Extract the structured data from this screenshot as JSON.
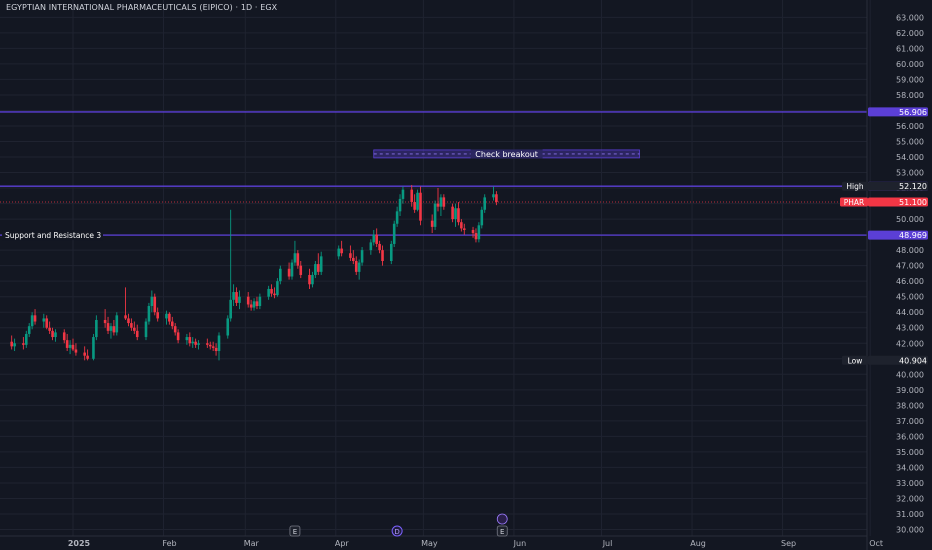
{
  "header": {
    "title": "EGYPTIAN INTERNATIONAL PHARMACEUTICALS (EIPICO) · 1D · EGX"
  },
  "colors": {
    "background": "#131722",
    "grid": "#1f2330",
    "up": "#089981",
    "down": "#f23645",
    "level_line": "#5b3fd6",
    "level_label_bg": "#5b3fd6",
    "price_label_bg": "#f23645",
    "text": "#d1d4dc",
    "axis_text": "#b2b5be"
  },
  "chart_data": {
    "type": "candlestick",
    "symbol": "PHAR",
    "ylim": [
      29.6,
      63.5
    ],
    "y_ticks": [
      "30.000",
      "31.000",
      "32.000",
      "33.000",
      "34.000",
      "35.000",
      "36.000",
      "37.000",
      "38.000",
      "39.000",
      "40.000",
      "41.000",
      "42.000",
      "43.000",
      "44.000",
      "45.000",
      "46.000",
      "47.000",
      "48.000",
      "49.000",
      "50.000",
      "51.000",
      "52.000",
      "53.000",
      "54.000",
      "55.000",
      "56.000",
      "57.000",
      "58.000",
      "59.000",
      "60.000",
      "61.000",
      "62.000",
      "63.000"
    ],
    "x_ticks": [
      {
        "label": "2025",
        "date": "2025-01-01"
      },
      {
        "label": "Feb",
        "date": "2025-02-01"
      },
      {
        "label": "Mar",
        "date": "2025-03-01"
      },
      {
        "label": "Apr",
        "date": "2025-04-01"
      },
      {
        "label": "May",
        "date": "2025-05-01"
      },
      {
        "label": "Jun",
        "date": "2025-06-01"
      },
      {
        "label": "Jul",
        "date": "2025-07-01"
      },
      {
        "label": "Aug",
        "date": "2025-08-01"
      },
      {
        "label": "Sep",
        "date": "2025-09-01"
      },
      {
        "label": "Oct",
        "date": "2025-10-01"
      }
    ],
    "x_range": [
      "2024-12-11",
      "2025-10-31"
    ],
    "levels": [
      {
        "value": 56.906,
        "label": "56.906",
        "text": ""
      },
      {
        "value": 52.12,
        "label": "52.120",
        "text": ""
      },
      {
        "value": 48.969,
        "label": "48.969",
        "text": "Support and Resistance 3"
      }
    ],
    "price_labels": [
      {
        "name": "High",
        "value": 52.12,
        "text": "52.120",
        "style": "dark"
      },
      {
        "name": "PHAR",
        "value": 51.1,
        "text": "51.100",
        "style": "red"
      },
      {
        "name": "Low",
        "value": 40.904,
        "text": "40.904",
        "style": "dark"
      }
    ],
    "annotation": {
      "text": "Check breakout",
      "start": "2025-04-14",
      "end": "2025-07-14",
      "value": 54.2
    },
    "event_markers": [
      {
        "letter": "E",
        "date": "2025-03-18"
      },
      {
        "letter": "D",
        "date": "2025-04-22"
      },
      {
        "letter": "E",
        "date": "2025-05-28"
      }
    ],
    "candles": [
      {
        "d": "2024-12-11",
        "o": 42.1,
        "h": 42.5,
        "l": 41.6,
        "c": 41.8
      },
      {
        "d": "2024-12-12",
        "o": 41.8,
        "h": 42.3,
        "l": 41.5,
        "c": 42.0
      },
      {
        "d": "2024-12-15",
        "o": 42.0,
        "h": 42.4,
        "l": 41.6,
        "c": 41.9
      },
      {
        "d": "2024-12-16",
        "o": 41.9,
        "h": 42.8,
        "l": 41.7,
        "c": 42.6
      },
      {
        "d": "2024-12-17",
        "o": 42.6,
        "h": 43.3,
        "l": 42.4,
        "c": 43.1
      },
      {
        "d": "2024-12-18",
        "o": 43.1,
        "h": 44.0,
        "l": 42.9,
        "c": 43.8
      },
      {
        "d": "2024-12-19",
        "o": 43.8,
        "h": 44.2,
        "l": 43.2,
        "c": 43.4
      },
      {
        "d": "2024-12-22",
        "o": 43.4,
        "h": 43.9,
        "l": 43.0,
        "c": 43.6
      },
      {
        "d": "2024-12-23",
        "o": 43.6,
        "h": 43.8,
        "l": 42.9,
        "c": 43.0
      },
      {
        "d": "2024-12-24",
        "o": 43.0,
        "h": 43.4,
        "l": 42.6,
        "c": 42.8
      },
      {
        "d": "2024-12-25",
        "o": 42.8,
        "h": 43.0,
        "l": 42.2,
        "c": 42.4
      },
      {
        "d": "2024-12-26",
        "o": 42.4,
        "h": 42.9,
        "l": 42.1,
        "c": 42.7
      },
      {
        "d": "2024-12-29",
        "o": 42.7,
        "h": 42.9,
        "l": 42.0,
        "c": 42.2
      },
      {
        "d": "2024-12-30",
        "o": 42.2,
        "h": 42.6,
        "l": 41.5,
        "c": 41.7
      },
      {
        "d": "2024-12-31",
        "o": 41.7,
        "h": 42.2,
        "l": 41.3,
        "c": 41.9
      },
      {
        "d": "2025-01-01",
        "o": 41.9,
        "h": 42.3,
        "l": 41.5,
        "c": 41.6
      },
      {
        "d": "2025-01-02",
        "o": 41.6,
        "h": 42.0,
        "l": 41.2,
        "c": 41.4
      },
      {
        "d": "2025-01-05",
        "o": 41.4,
        "h": 41.8,
        "l": 40.9,
        "c": 41.2
      },
      {
        "d": "2025-01-06",
        "o": 41.2,
        "h": 41.6,
        "l": 40.9,
        "c": 41.0
      },
      {
        "d": "2025-01-08",
        "o": 41.0,
        "h": 42.6,
        "l": 40.9,
        "c": 42.4
      },
      {
        "d": "2025-01-09",
        "o": 42.4,
        "h": 43.8,
        "l": 42.2,
        "c": 43.5
      },
      {
        "d": "2025-01-12",
        "o": 43.5,
        "h": 44.2,
        "l": 43.0,
        "c": 43.3
      },
      {
        "d": "2025-01-13",
        "o": 43.3,
        "h": 43.7,
        "l": 42.6,
        "c": 42.8
      },
      {
        "d": "2025-01-14",
        "o": 42.8,
        "h": 43.3,
        "l": 42.3,
        "c": 43.1
      },
      {
        "d": "2025-01-15",
        "o": 43.1,
        "h": 43.5,
        "l": 42.5,
        "c": 42.7
      },
      {
        "d": "2025-01-16",
        "o": 42.7,
        "h": 44.0,
        "l": 42.5,
        "c": 43.8
      },
      {
        "d": "2025-01-19",
        "o": 43.8,
        "h": 45.6,
        "l": 43.5,
        "c": 43.6
      },
      {
        "d": "2025-01-20",
        "o": 43.6,
        "h": 43.9,
        "l": 43.1,
        "c": 43.3
      },
      {
        "d": "2025-01-21",
        "o": 43.3,
        "h": 43.6,
        "l": 42.8,
        "c": 43.0
      },
      {
        "d": "2025-01-22",
        "o": 43.0,
        "h": 43.4,
        "l": 42.6,
        "c": 42.8
      },
      {
        "d": "2025-01-23",
        "o": 42.8,
        "h": 43.2,
        "l": 42.2,
        "c": 42.4
      },
      {
        "d": "2025-01-26",
        "o": 42.4,
        "h": 43.6,
        "l": 42.2,
        "c": 43.4
      },
      {
        "d": "2025-01-27",
        "o": 43.4,
        "h": 44.6,
        "l": 43.2,
        "c": 44.4
      },
      {
        "d": "2025-01-28",
        "o": 44.4,
        "h": 45.4,
        "l": 44.0,
        "c": 45.0
      },
      {
        "d": "2025-01-29",
        "o": 45.0,
        "h": 45.2,
        "l": 43.8,
        "c": 44.0
      },
      {
        "d": "2025-01-30",
        "o": 44.0,
        "h": 44.3,
        "l": 43.4,
        "c": 43.6
      },
      {
        "d": "2025-02-02",
        "o": 43.6,
        "h": 44.1,
        "l": 43.2,
        "c": 43.9
      },
      {
        "d": "2025-02-03",
        "o": 43.9,
        "h": 44.0,
        "l": 43.2,
        "c": 43.4
      },
      {
        "d": "2025-02-04",
        "o": 43.4,
        "h": 43.7,
        "l": 42.9,
        "c": 43.1
      },
      {
        "d": "2025-02-05",
        "o": 43.1,
        "h": 43.3,
        "l": 42.5,
        "c": 42.7
      },
      {
        "d": "2025-02-06",
        "o": 42.7,
        "h": 42.9,
        "l": 42.0,
        "c": 42.2
      },
      {
        "d": "2025-02-09",
        "o": 42.2,
        "h": 42.6,
        "l": 41.9,
        "c": 42.4
      },
      {
        "d": "2025-02-10",
        "o": 42.4,
        "h": 42.7,
        "l": 41.8,
        "c": 42.0
      },
      {
        "d": "2025-02-11",
        "o": 42.0,
        "h": 42.4,
        "l": 41.7,
        "c": 42.1
      },
      {
        "d": "2025-02-12",
        "o": 42.1,
        "h": 42.3,
        "l": 41.7,
        "c": 41.9
      },
      {
        "d": "2025-02-13",
        "o": 41.9,
        "h": 42.2,
        "l": 41.6,
        "c": 42.0
      },
      {
        "d": "2025-02-16",
        "o": 42.0,
        "h": 42.3,
        "l": 41.7,
        "c": 41.9
      },
      {
        "d": "2025-02-17",
        "o": 41.9,
        "h": 42.1,
        "l": 41.6,
        "c": 41.8
      },
      {
        "d": "2025-02-18",
        "o": 41.8,
        "h": 42.1,
        "l": 41.5,
        "c": 41.7
      },
      {
        "d": "2025-02-19",
        "o": 41.7,
        "h": 42.0,
        "l": 41.2,
        "c": 41.5
      },
      {
        "d": "2025-02-20",
        "o": 41.5,
        "h": 42.7,
        "l": 40.9,
        "c": 42.5
      },
      {
        "d": "2025-02-23",
        "o": 42.5,
        "h": 43.8,
        "l": 42.3,
        "c": 43.6
      },
      {
        "d": "2025-02-24",
        "o": 43.6,
        "h": 50.6,
        "l": 43.4,
        "c": 44.8
      },
      {
        "d": "2025-02-25",
        "o": 44.8,
        "h": 45.8,
        "l": 44.4,
        "c": 45.3
      },
      {
        "d": "2025-02-26",
        "o": 45.3,
        "h": 45.6,
        "l": 44.4,
        "c": 44.6
      },
      {
        "d": "2025-02-27",
        "o": 44.6,
        "h": 45.4,
        "l": 44.2,
        "c": 45.0
      },
      {
        "d": "2025-03-02",
        "o": 45.0,
        "h": 45.3,
        "l": 44.3,
        "c": 44.5
      },
      {
        "d": "2025-03-03",
        "o": 44.5,
        "h": 44.8,
        "l": 44.1,
        "c": 44.3
      },
      {
        "d": "2025-03-04",
        "o": 44.3,
        "h": 44.9,
        "l": 44.1,
        "c": 44.7
      },
      {
        "d": "2025-03-05",
        "o": 44.7,
        "h": 45.0,
        "l": 44.2,
        "c": 44.4
      },
      {
        "d": "2025-03-06",
        "o": 44.4,
        "h": 45.2,
        "l": 44.2,
        "c": 45.0
      },
      {
        "d": "2025-03-09",
        "o": 45.0,
        "h": 45.7,
        "l": 44.8,
        "c": 45.5
      },
      {
        "d": "2025-03-10",
        "o": 45.5,
        "h": 45.8,
        "l": 45.0,
        "c": 45.2
      },
      {
        "d": "2025-03-11",
        "o": 45.2,
        "h": 45.6,
        "l": 44.9,
        "c": 45.1
      },
      {
        "d": "2025-03-12",
        "o": 45.1,
        "h": 46.2,
        "l": 45.0,
        "c": 46.0
      },
      {
        "d": "2025-03-13",
        "o": 46.0,
        "h": 47.0,
        "l": 45.8,
        "c": 46.8
      },
      {
        "d": "2025-03-16",
        "o": 46.8,
        "h": 47.2,
        "l": 46.1,
        "c": 46.3
      },
      {
        "d": "2025-03-17",
        "o": 46.3,
        "h": 47.4,
        "l": 46.1,
        "c": 47.2
      },
      {
        "d": "2025-03-18",
        "o": 47.2,
        "h": 48.6,
        "l": 47.0,
        "c": 47.8
      },
      {
        "d": "2025-03-19",
        "o": 47.8,
        "h": 48.0,
        "l": 46.8,
        "c": 47.0
      },
      {
        "d": "2025-03-20",
        "o": 47.0,
        "h": 47.3,
        "l": 46.2,
        "c": 46.4
      },
      {
        "d": "2025-03-23",
        "o": 46.4,
        "h": 46.8,
        "l": 45.5,
        "c": 45.8
      },
      {
        "d": "2025-03-24",
        "o": 45.8,
        "h": 46.6,
        "l": 45.6,
        "c": 46.4
      },
      {
        "d": "2025-03-25",
        "o": 46.4,
        "h": 47.3,
        "l": 46.2,
        "c": 47.1
      },
      {
        "d": "2025-03-26",
        "o": 47.1,
        "h": 47.8,
        "l": 46.4,
        "c": 46.6
      },
      {
        "d": "2025-03-27",
        "o": 46.6,
        "h": 47.9,
        "l": 46.4,
        "c": 47.6
      },
      {
        "d": "2025-04-02",
        "o": 47.6,
        "h": 48.3,
        "l": 47.4,
        "c": 48.1
      },
      {
        "d": "2025-04-03",
        "o": 48.1,
        "h": 48.6,
        "l": 47.6,
        "c": 47.8
      },
      {
        "d": "2025-04-06",
        "o": 47.8,
        "h": 48.3,
        "l": 47.3,
        "c": 47.5
      },
      {
        "d": "2025-04-07",
        "o": 47.5,
        "h": 48.0,
        "l": 47.1,
        "c": 47.3
      },
      {
        "d": "2025-04-08",
        "o": 47.3,
        "h": 47.6,
        "l": 46.4,
        "c": 46.6
      },
      {
        "d": "2025-04-09",
        "o": 46.6,
        "h": 47.4,
        "l": 46.1,
        "c": 47.2
      },
      {
        "d": "2025-04-10",
        "o": 47.2,
        "h": 48.2,
        "l": 47.0,
        "c": 48.0
      },
      {
        "d": "2025-04-13",
        "o": 48.0,
        "h": 48.7,
        "l": 47.7,
        "c": 48.5
      },
      {
        "d": "2025-04-14",
        "o": 48.5,
        "h": 49.3,
        "l": 48.3,
        "c": 49.0
      },
      {
        "d": "2025-04-15",
        "o": 49.0,
        "h": 49.4,
        "l": 48.2,
        "c": 48.4
      },
      {
        "d": "2025-04-16",
        "o": 48.4,
        "h": 48.6,
        "l": 47.8,
        "c": 48.0
      },
      {
        "d": "2025-04-17",
        "o": 48.0,
        "h": 48.3,
        "l": 47.0,
        "c": 47.3
      },
      {
        "d": "2025-04-20",
        "o": 47.3,
        "h": 48.6,
        "l": 47.1,
        "c": 48.4
      },
      {
        "d": "2025-04-21",
        "o": 48.4,
        "h": 49.9,
        "l": 48.2,
        "c": 49.7
      },
      {
        "d": "2025-04-22",
        "o": 49.7,
        "h": 50.8,
        "l": 49.5,
        "c": 50.5
      },
      {
        "d": "2025-04-23",
        "o": 50.5,
        "h": 51.6,
        "l": 50.2,
        "c": 51.3
      },
      {
        "d": "2025-04-24",
        "o": 51.3,
        "h": 52.1,
        "l": 51.0,
        "c": 51.9
      },
      {
        "d": "2025-04-27",
        "o": 51.9,
        "h": 52.2,
        "l": 50.8,
        "c": 51.1
      },
      {
        "d": "2025-04-28",
        "o": 51.1,
        "h": 51.6,
        "l": 50.4,
        "c": 50.6
      },
      {
        "d": "2025-04-29",
        "o": 50.6,
        "h": 51.9,
        "l": 50.5,
        "c": 51.7
      },
      {
        "d": "2025-04-30",
        "o": 51.7,
        "h": 52.1,
        "l": 49.6,
        "c": 49.9
      },
      {
        "d": "2025-05-04",
        "o": 49.9,
        "h": 50.3,
        "l": 49.1,
        "c": 49.5
      },
      {
        "d": "2025-05-05",
        "o": 49.5,
        "h": 51.2,
        "l": 49.3,
        "c": 51.0
      },
      {
        "d": "2025-05-06",
        "o": 51.0,
        "h": 52.0,
        "l": 50.5,
        "c": 50.8
      },
      {
        "d": "2025-05-07",
        "o": 50.8,
        "h": 51.6,
        "l": 50.2,
        "c": 51.4
      },
      {
        "d": "2025-05-08",
        "o": 51.4,
        "h": 51.6,
        "l": 50.6,
        "c": 50.8
      },
      {
        "d": "2025-05-11",
        "o": 50.8,
        "h": 51.0,
        "l": 49.8,
        "c": 50.0
      },
      {
        "d": "2025-05-12",
        "o": 50.0,
        "h": 51.0,
        "l": 49.5,
        "c": 50.7
      },
      {
        "d": "2025-05-13",
        "o": 50.7,
        "h": 51.1,
        "l": 49.6,
        "c": 49.8
      },
      {
        "d": "2025-05-14",
        "o": 49.8,
        "h": 50.0,
        "l": 49.2,
        "c": 49.4
      },
      {
        "d": "2025-05-15",
        "o": 49.4,
        "h": 49.7,
        "l": 49.0,
        "c": 49.3
      },
      {
        "d": "2025-05-18",
        "o": 49.3,
        "h": 49.5,
        "l": 48.8,
        "c": 49.1
      },
      {
        "d": "2025-05-19",
        "o": 49.1,
        "h": 49.4,
        "l": 48.5,
        "c": 48.7
      },
      {
        "d": "2025-05-20",
        "o": 48.7,
        "h": 49.8,
        "l": 48.5,
        "c": 49.6
      },
      {
        "d": "2025-05-21",
        "o": 49.6,
        "h": 50.8,
        "l": 49.4,
        "c": 50.6
      },
      {
        "d": "2025-05-22",
        "o": 50.6,
        "h": 51.6,
        "l": 50.4,
        "c": 51.4
      },
      {
        "d": "2025-05-25",
        "o": 51.4,
        "h": 52.1,
        "l": 51.2,
        "c": 51.6
      },
      {
        "d": "2025-05-26",
        "o": 51.6,
        "h": 51.8,
        "l": 50.9,
        "c": 51.1
      }
    ]
  }
}
